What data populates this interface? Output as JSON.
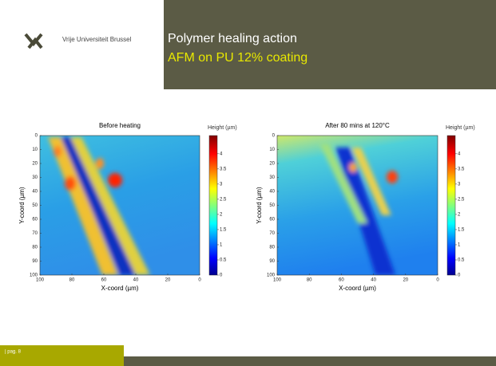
{
  "header": {
    "institution": "Vrije Universiteit Brussel",
    "title": "Polymer healing action",
    "subtitle": "AFM on PU 12% coating"
  },
  "plots": [
    {
      "title": "Before heating",
      "colorbar_label": "Height (µm)",
      "xlabel": "X-coord (µm)",
      "ylabel": "Y-coord (µm)",
      "xticks": [
        100,
        80,
        60,
        40,
        20,
        0
      ],
      "yticks": [
        0,
        10,
        20,
        30,
        40,
        50,
        60,
        70,
        80,
        90,
        100
      ],
      "colorbar_ticks": [
        0,
        0.5,
        1,
        1.5,
        2,
        2.5,
        3,
        3.5,
        4
      ]
    },
    {
      "title": "After 80 mins at 120°C",
      "colorbar_label": "Height (µm)",
      "xlabel": "X-coord (µm)",
      "ylabel": "Y-coord (µm)",
      "xticks": [
        100,
        80,
        60,
        40,
        20,
        0
      ],
      "yticks": [
        0,
        10,
        20,
        30,
        40,
        50,
        60,
        70,
        80,
        90,
        100
      ],
      "colorbar_ticks": [
        0,
        0.5,
        1,
        1.5,
        2,
        2.5,
        3,
        3.5,
        4
      ]
    }
  ],
  "footer": {
    "page": "| pag. 8"
  }
}
